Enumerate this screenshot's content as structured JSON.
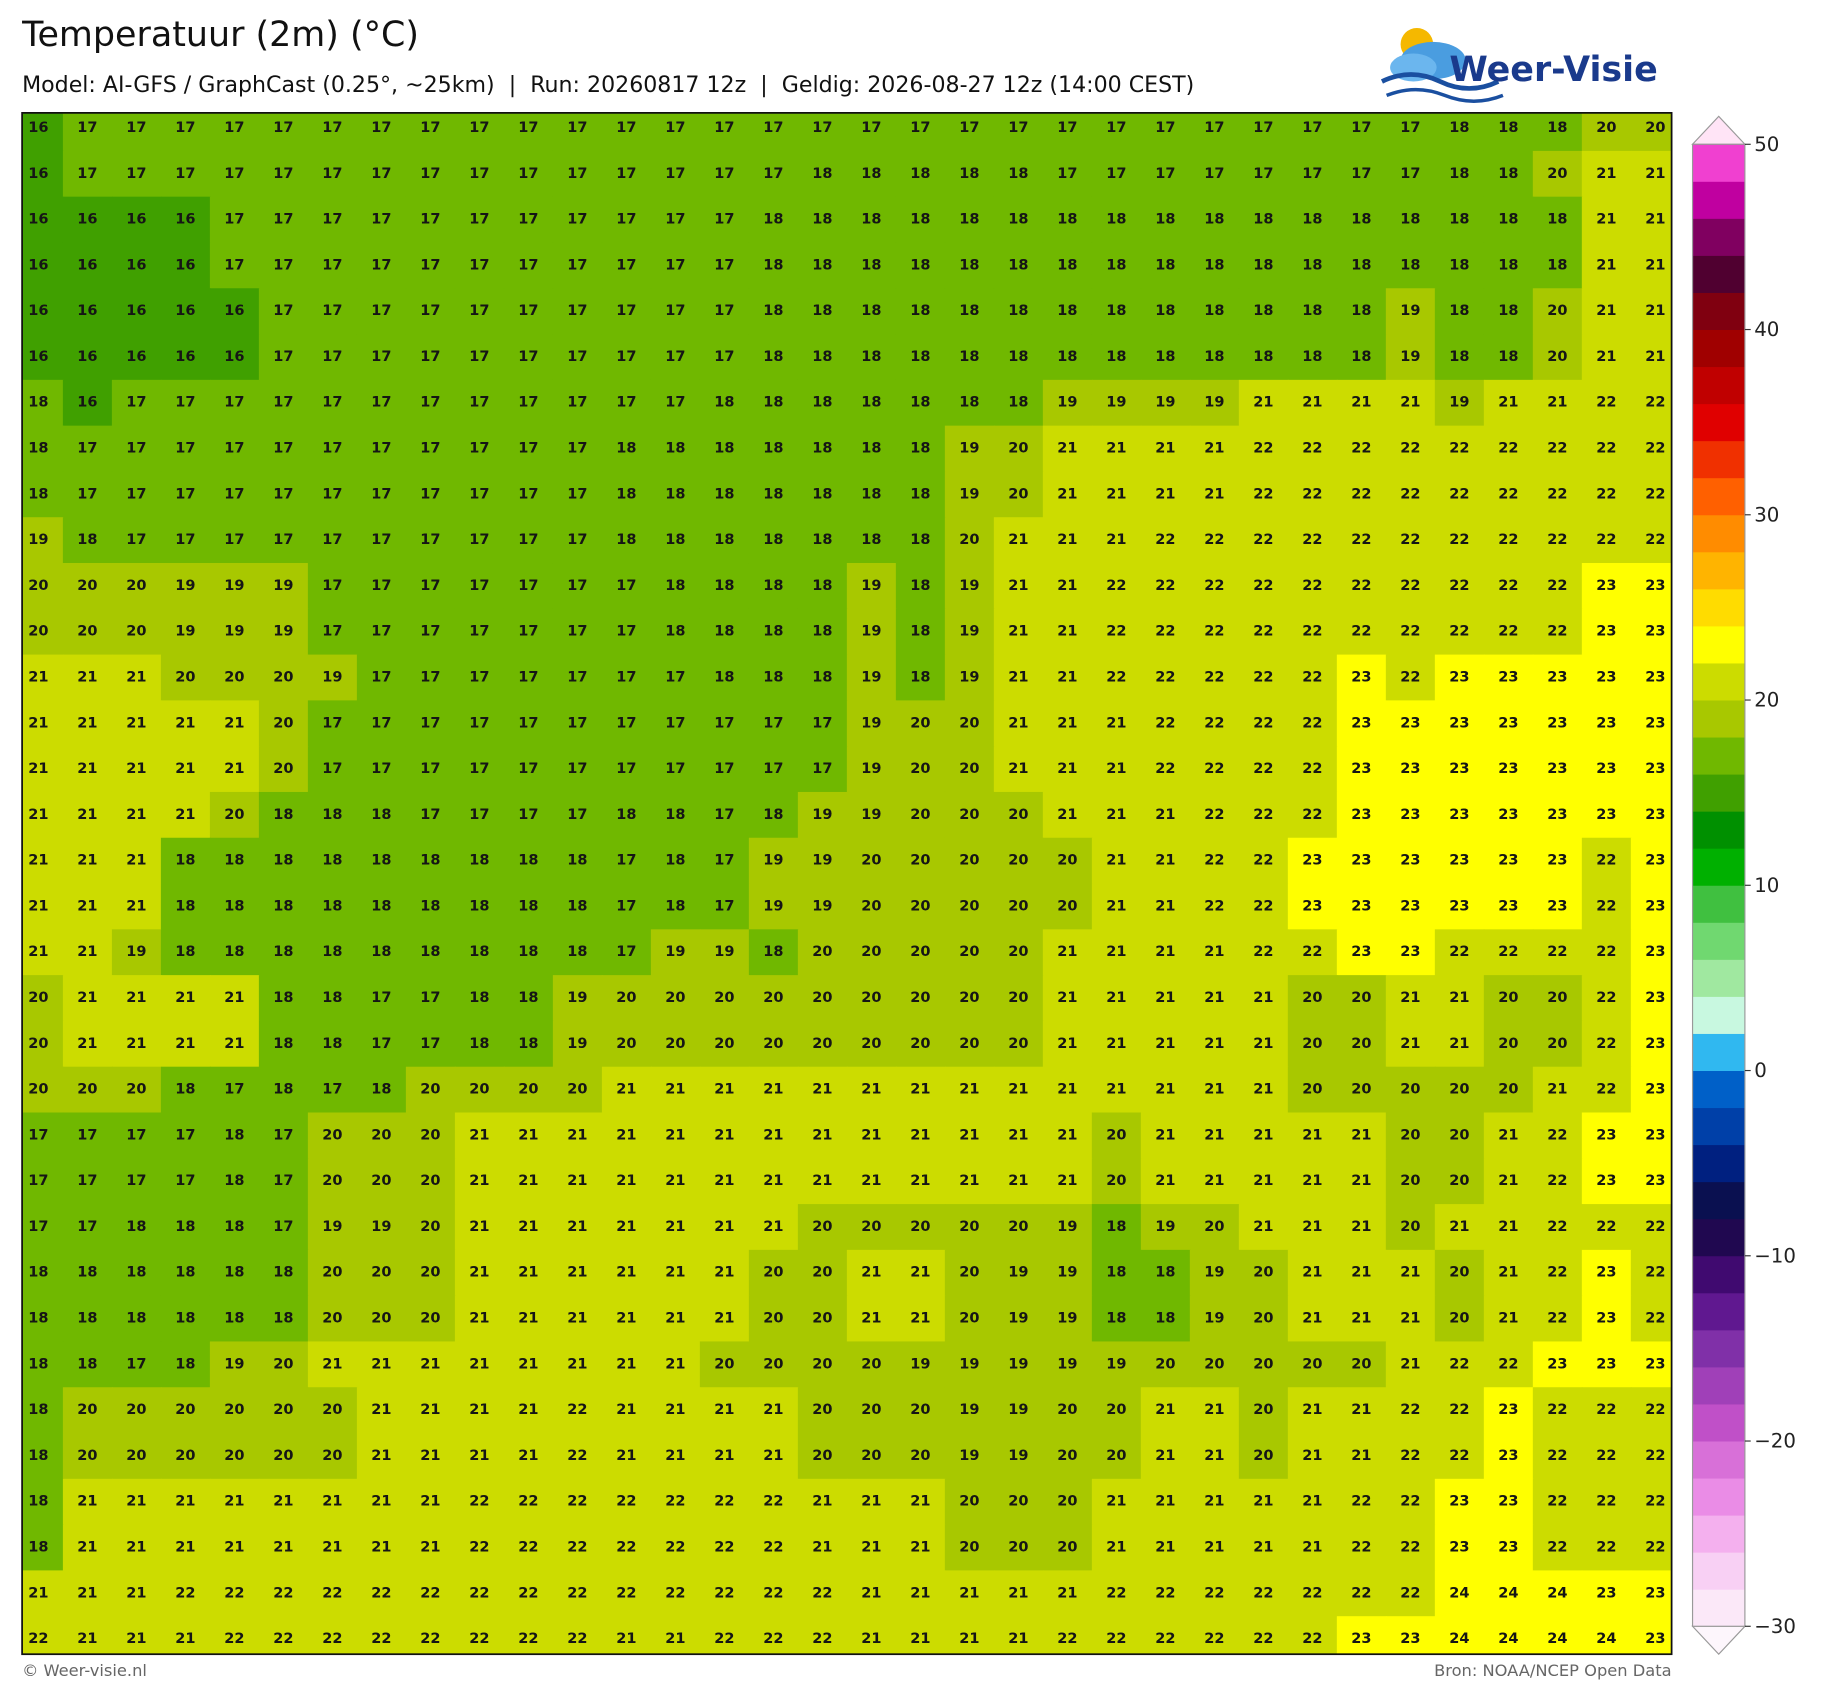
{
  "header": {
    "title": "Temperatuur (2m) (°C)",
    "subtitle": "Model: AI-GFS / GraphCast (0.25°, ~25km)  |  Run: 20260817 12z  |  Geldig: 2026-08-27 12z (14:00 CEST)",
    "logo": "Weer-Visie"
  },
  "chart_data": {
    "type": "heatmap",
    "values": [
      [
        16,
        17,
        17,
        17,
        17,
        17,
        17,
        17,
        17,
        17,
        17,
        17,
        17,
        17,
        17,
        17,
        17,
        17,
        17,
        17,
        17,
        17,
        17,
        17,
        17,
        17,
        17,
        17,
        17,
        18,
        18,
        18,
        20,
        20
      ],
      [
        16,
        17,
        17,
        17,
        17,
        17,
        17,
        17,
        17,
        17,
        17,
        17,
        17,
        17,
        17,
        17,
        18,
        18,
        18,
        18,
        18,
        17,
        17,
        17,
        17,
        17,
        17,
        17,
        17,
        18,
        18,
        20,
        21,
        21
      ],
      [
        16,
        16,
        16,
        16,
        17,
        17,
        17,
        17,
        17,
        17,
        17,
        17,
        17,
        17,
        17,
        18,
        18,
        18,
        18,
        18,
        18,
        18,
        18,
        18,
        18,
        18,
        18,
        18,
        18,
        18,
        18,
        18,
        21,
        21
      ],
      [
        16,
        16,
        16,
        16,
        17,
        17,
        17,
        17,
        17,
        17,
        17,
        17,
        17,
        17,
        17,
        18,
        18,
        18,
        18,
        18,
        18,
        18,
        18,
        18,
        18,
        18,
        18,
        18,
        18,
        18,
        18,
        18,
        21,
        21
      ],
      [
        16,
        16,
        16,
        16,
        16,
        17,
        17,
        17,
        17,
        17,
        17,
        17,
        17,
        17,
        17,
        18,
        18,
        18,
        18,
        18,
        18,
        18,
        18,
        18,
        18,
        18,
        18,
        18,
        19,
        18,
        18,
        20,
        21,
        21
      ],
      [
        16,
        16,
        16,
        16,
        16,
        17,
        17,
        17,
        17,
        17,
        17,
        17,
        17,
        17,
        17,
        18,
        18,
        18,
        18,
        18,
        18,
        18,
        18,
        18,
        18,
        18,
        18,
        18,
        19,
        18,
        18,
        20,
        21,
        21
      ],
      [
        18,
        16,
        17,
        17,
        17,
        17,
        17,
        17,
        17,
        17,
        17,
        17,
        17,
        17,
        18,
        18,
        18,
        18,
        18,
        18,
        18,
        19,
        19,
        19,
        19,
        21,
        21,
        21,
        21,
        19,
        21,
        21,
        22,
        22
      ],
      [
        18,
        17,
        17,
        17,
        17,
        17,
        17,
        17,
        17,
        17,
        17,
        17,
        18,
        18,
        18,
        18,
        18,
        18,
        18,
        19,
        20,
        21,
        21,
        21,
        21,
        22,
        22,
        22,
        22,
        22,
        22,
        22,
        22,
        22
      ],
      [
        18,
        17,
        17,
        17,
        17,
        17,
        17,
        17,
        17,
        17,
        17,
        17,
        18,
        18,
        18,
        18,
        18,
        18,
        18,
        19,
        20,
        21,
        21,
        21,
        21,
        22,
        22,
        22,
        22,
        22,
        22,
        22,
        22,
        22
      ],
      [
        19,
        18,
        17,
        17,
        17,
        17,
        17,
        17,
        17,
        17,
        17,
        17,
        18,
        18,
        18,
        18,
        18,
        18,
        18,
        20,
        21,
        21,
        21,
        22,
        22,
        22,
        22,
        22,
        22,
        22,
        22,
        22,
        22,
        22
      ],
      [
        20,
        20,
        20,
        19,
        19,
        19,
        17,
        17,
        17,
        17,
        17,
        17,
        17,
        18,
        18,
        18,
        18,
        19,
        18,
        19,
        21,
        21,
        22,
        22,
        22,
        22,
        22,
        22,
        22,
        22,
        22,
        22,
        23,
        23
      ],
      [
        20,
        20,
        20,
        19,
        19,
        19,
        17,
        17,
        17,
        17,
        17,
        17,
        17,
        18,
        18,
        18,
        18,
        19,
        18,
        19,
        21,
        21,
        22,
        22,
        22,
        22,
        22,
        22,
        22,
        22,
        22,
        22,
        23,
        23
      ],
      [
        21,
        21,
        21,
        20,
        20,
        20,
        19,
        17,
        17,
        17,
        17,
        17,
        17,
        17,
        18,
        18,
        18,
        19,
        18,
        19,
        21,
        21,
        22,
        22,
        22,
        22,
        22,
        23,
        22,
        23,
        23,
        23,
        23,
        23
      ],
      [
        21,
        21,
        21,
        21,
        21,
        20,
        17,
        17,
        17,
        17,
        17,
        17,
        17,
        17,
        17,
        17,
        17,
        19,
        20,
        20,
        21,
        21,
        21,
        22,
        22,
        22,
        22,
        23,
        23,
        23,
        23,
        23,
        23,
        23
      ],
      [
        21,
        21,
        21,
        21,
        21,
        20,
        17,
        17,
        17,
        17,
        17,
        17,
        17,
        17,
        17,
        17,
        17,
        19,
        20,
        20,
        21,
        21,
        21,
        22,
        22,
        22,
        22,
        23,
        23,
        23,
        23,
        23,
        23,
        23
      ],
      [
        21,
        21,
        21,
        21,
        20,
        18,
        18,
        18,
        17,
        17,
        17,
        17,
        18,
        18,
        17,
        18,
        19,
        19,
        20,
        20,
        20,
        21,
        21,
        21,
        22,
        22,
        22,
        23,
        23,
        23,
        23,
        23,
        23,
        23
      ],
      [
        21,
        21,
        21,
        18,
        18,
        18,
        18,
        18,
        18,
        18,
        18,
        18,
        17,
        18,
        17,
        19,
        19,
        20,
        20,
        20,
        20,
        20,
        21,
        21,
        22,
        22,
        23,
        23,
        23,
        23,
        23,
        23,
        22,
        23
      ],
      [
        21,
        21,
        21,
        18,
        18,
        18,
        18,
        18,
        18,
        18,
        18,
        18,
        17,
        18,
        17,
        19,
        19,
        20,
        20,
        20,
        20,
        20,
        21,
        21,
        22,
        22,
        23,
        23,
        23,
        23,
        23,
        23,
        22,
        23
      ],
      [
        21,
        21,
        19,
        18,
        18,
        18,
        18,
        18,
        18,
        18,
        18,
        18,
        17,
        19,
        19,
        18,
        20,
        20,
        20,
        20,
        20,
        21,
        21,
        21,
        21,
        22,
        22,
        23,
        23,
        22,
        22,
        22,
        22,
        23
      ],
      [
        20,
        21,
        21,
        21,
        21,
        18,
        18,
        17,
        17,
        18,
        18,
        19,
        20,
        20,
        20,
        20,
        20,
        20,
        20,
        20,
        20,
        21,
        21,
        21,
        21,
        21,
        20,
        20,
        21,
        21,
        20,
        20,
        22,
        23
      ],
      [
        20,
        21,
        21,
        21,
        21,
        18,
        18,
        17,
        17,
        18,
        18,
        19,
        20,
        20,
        20,
        20,
        20,
        20,
        20,
        20,
        20,
        21,
        21,
        21,
        21,
        21,
        20,
        20,
        21,
        21,
        20,
        20,
        22,
        23
      ],
      [
        20,
        20,
        20,
        18,
        17,
        18,
        17,
        18,
        20,
        20,
        20,
        20,
        21,
        21,
        21,
        21,
        21,
        21,
        21,
        21,
        21,
        21,
        21,
        21,
        21,
        21,
        20,
        20,
        20,
        20,
        20,
        21,
        22,
        23
      ],
      [
        17,
        17,
        17,
        17,
        18,
        17,
        20,
        20,
        20,
        21,
        21,
        21,
        21,
        21,
        21,
        21,
        21,
        21,
        21,
        21,
        21,
        21,
        20,
        21,
        21,
        21,
        21,
        21,
        20,
        20,
        21,
        22,
        23,
        23
      ],
      [
        17,
        17,
        17,
        17,
        18,
        17,
        20,
        20,
        20,
        21,
        21,
        21,
        21,
        21,
        21,
        21,
        21,
        21,
        21,
        21,
        21,
        21,
        20,
        21,
        21,
        21,
        21,
        21,
        20,
        20,
        21,
        22,
        23,
        23
      ],
      [
        17,
        17,
        18,
        18,
        18,
        17,
        19,
        19,
        20,
        21,
        21,
        21,
        21,
        21,
        21,
        21,
        20,
        20,
        20,
        20,
        20,
        19,
        18,
        19,
        20,
        21,
        21,
        21,
        20,
        21,
        21,
        22,
        22,
        22
      ],
      [
        18,
        18,
        18,
        18,
        18,
        18,
        20,
        20,
        20,
        21,
        21,
        21,
        21,
        21,
        21,
        20,
        20,
        21,
        21,
        20,
        19,
        19,
        18,
        18,
        19,
        20,
        21,
        21,
        21,
        20,
        21,
        22,
        23,
        22
      ],
      [
        18,
        18,
        18,
        18,
        18,
        18,
        20,
        20,
        20,
        21,
        21,
        21,
        21,
        21,
        21,
        20,
        20,
        21,
        21,
        20,
        19,
        19,
        18,
        18,
        19,
        20,
        21,
        21,
        21,
        20,
        21,
        22,
        23,
        22
      ],
      [
        18,
        18,
        17,
        18,
        19,
        20,
        21,
        21,
        21,
        21,
        21,
        21,
        21,
        21,
        20,
        20,
        20,
        20,
        19,
        19,
        19,
        19,
        19,
        20,
        20,
        20,
        20,
        20,
        21,
        22,
        22,
        23,
        23,
        23
      ],
      [
        18,
        20,
        20,
        20,
        20,
        20,
        20,
        21,
        21,
        21,
        21,
        22,
        21,
        21,
        21,
        21,
        20,
        20,
        20,
        19,
        19,
        20,
        20,
        21,
        21,
        20,
        21,
        21,
        22,
        22,
        23,
        22,
        22,
        22
      ],
      [
        18,
        20,
        20,
        20,
        20,
        20,
        20,
        21,
        21,
        21,
        21,
        22,
        21,
        21,
        21,
        21,
        20,
        20,
        20,
        19,
        19,
        20,
        20,
        21,
        21,
        20,
        21,
        21,
        22,
        22,
        23,
        22,
        22,
        22
      ],
      [
        18,
        21,
        21,
        21,
        21,
        21,
        21,
        21,
        21,
        22,
        22,
        22,
        22,
        22,
        22,
        22,
        21,
        21,
        21,
        20,
        20,
        20,
        21,
        21,
        21,
        21,
        21,
        22,
        22,
        23,
        23,
        22,
        22,
        22
      ],
      [
        18,
        21,
        21,
        21,
        21,
        21,
        21,
        21,
        21,
        22,
        22,
        22,
        22,
        22,
        22,
        22,
        21,
        21,
        21,
        20,
        20,
        20,
        21,
        21,
        21,
        21,
        21,
        22,
        22,
        23,
        23,
        22,
        22,
        22
      ],
      [
        21,
        21,
        21,
        22,
        22,
        22,
        22,
        22,
        22,
        22,
        22,
        22,
        22,
        22,
        22,
        22,
        22,
        21,
        21,
        21,
        21,
        21,
        22,
        22,
        22,
        22,
        22,
        22,
        22,
        24,
        24,
        24,
        23,
        23
      ],
      [
        22,
        21,
        21,
        21,
        22,
        22,
        22,
        22,
        22,
        22,
        22,
        22,
        21,
        21,
        22,
        22,
        22,
        21,
        21,
        21,
        21,
        22,
        22,
        22,
        22,
        22,
        22,
        23,
        23,
        24,
        24,
        24,
        24,
        23
      ]
    ],
    "colorbar": {
      "lim": [
        -30,
        50
      ],
      "ticks": [
        {
          "value": -30,
          "label": "−30"
        },
        {
          "value": -20,
          "label": "−20"
        },
        {
          "value": -10,
          "label": "−10"
        },
        0,
        10,
        20,
        30,
        40,
        50
      ],
      "colors": [
        "#fbe8f8",
        "#f8d0f4",
        "#f4b0ee",
        "#ea8ce6",
        "#d870d8",
        "#c050c8",
        "#a040b8",
        "#8030a8",
        "#601890",
        "#400a70",
        "#200850",
        "#0a1050",
        "#002080",
        "#0040a8",
        "#0060c8",
        "#30b8f0",
        "#c8f8e0",
        "#a0e8a0",
        "#70d870",
        "#40c040",
        "#00b000",
        "#009000",
        "#40a000",
        "#70b800",
        "#a8c800",
        "#ccdc00",
        "#ffff00",
        "#ffdc00",
        "#ffb400",
        "#ff8c00",
        "#ff6000",
        "#f03000",
        "#e00000",
        "#c00000",
        "#a00000",
        "#800010",
        "#500030",
        "#800060",
        "#c000a0",
        "#f040d0"
      ]
    }
  },
  "footer": {
    "left": "© Weer-visie.nl",
    "right": "Bron: NOAA/NCEP Open Data"
  }
}
